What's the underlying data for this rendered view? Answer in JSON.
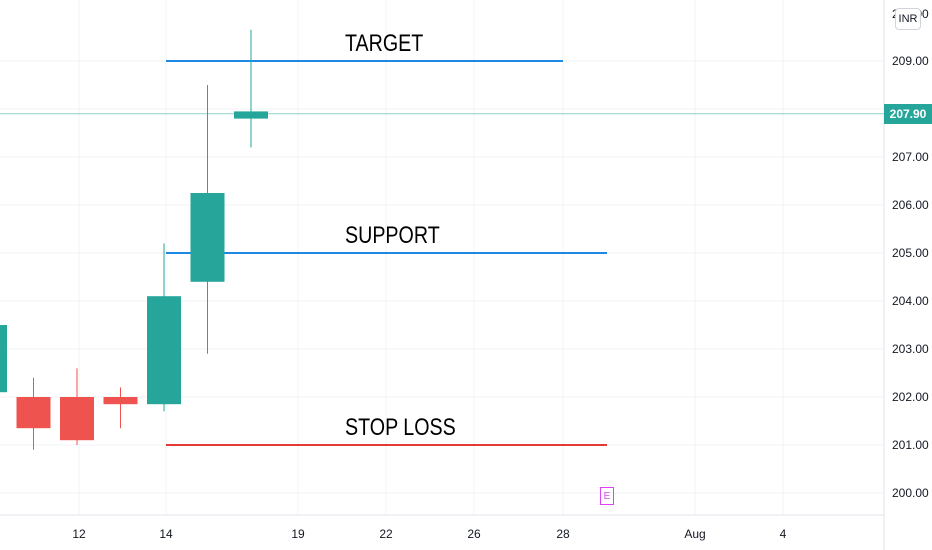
{
  "chart_data": {
    "type": "candlestick",
    "currency": "INR",
    "last_price": "207.90",
    "y_axis_top_label": "210.00",
    "y_ticks": [
      209,
      208,
      207,
      206,
      205,
      204,
      203,
      202,
      201,
      200
    ],
    "ylim": [
      199.5,
      210.2
    ],
    "x_ticks": [
      "12",
      "14",
      "19",
      "22",
      "26",
      "28",
      "Aug",
      "4"
    ],
    "candles": [
      {
        "open": 202.1,
        "high": 203.5,
        "low": 202.0,
        "close": 203.5
      },
      {
        "open": 202.0,
        "high": 202.4,
        "low": 200.9,
        "close": 201.35
      },
      {
        "open": 202.0,
        "high": 202.6,
        "low": 201.0,
        "close": 201.1
      },
      {
        "open": 202.0,
        "high": 202.2,
        "low": 201.35,
        "close": 201.85
      },
      {
        "open": 201.85,
        "high": 205.2,
        "low": 201.7,
        "close": 204.1
      },
      {
        "open": 204.4,
        "high": 208.5,
        "low": 202.9,
        "close": 206.25
      },
      {
        "open": 207.8,
        "high": 209.65,
        "low": 207.2,
        "close": 207.95
      }
    ],
    "levels": [
      {
        "label": "TARGET",
        "value": 209.0,
        "color": "#1e88e5"
      },
      {
        "label": "SUPPORT",
        "value": 205.0,
        "color": "#1e88e5"
      },
      {
        "label": "STOP LOSS",
        "value": 201.0,
        "color": "#e53935"
      }
    ],
    "event_marker": "E",
    "colors": {
      "up": "#26a69a",
      "down": "#ef5350"
    }
  }
}
